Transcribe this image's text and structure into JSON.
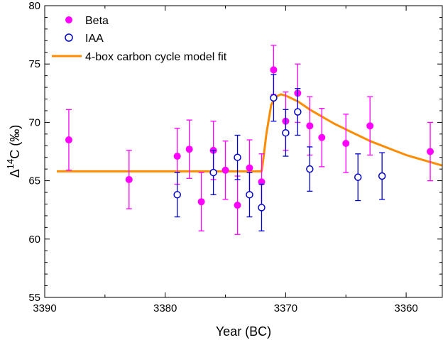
{
  "chart_data": {
    "type": "scatter",
    "xlabel": "Year (BC)",
    "ylabel_prefix": "Δ",
    "ylabel_sup": "14",
    "ylabel_main": "C (‰)",
    "xlim": [
      3390,
      3357
    ],
    "ylim": [
      55,
      80
    ],
    "x_ticks": [
      3390,
      3380,
      3370,
      3360
    ],
    "x_tick_labels": [
      "3390",
      "3380",
      "3370",
      "3360"
    ],
    "y_ticks": [
      55,
      60,
      65,
      70,
      75,
      80
    ],
    "y_tick_labels": [
      "55",
      "60",
      "65",
      "70",
      "75",
      "80"
    ],
    "legend_position": "top-left",
    "colors": {
      "beta": "#ff00ff",
      "iaa": "#0000cc",
      "model": "#ff8c00"
    },
    "series": [
      {
        "name": "Beta",
        "marker": "filled-circle",
        "points": [
          {
            "x": 3388,
            "y": 68.5,
            "err": 2.6
          },
          {
            "x": 3383,
            "y": 65.1,
            "err": 2.5
          },
          {
            "x": 3379,
            "y": 67.1,
            "err": 2.4
          },
          {
            "x": 3378,
            "y": 67.7,
            "err": 2.5
          },
          {
            "x": 3377,
            "y": 63.2,
            "err": 2.5
          },
          {
            "x": 3376,
            "y": 67.6,
            "err": 2.5
          },
          {
            "x": 3375,
            "y": 65.9,
            "err": 2.5
          },
          {
            "x": 3374,
            "y": 62.9,
            "err": 2.5
          },
          {
            "x": 3373,
            "y": 66.1,
            "err": 2.4
          },
          {
            "x": 3372,
            "y": 64.9,
            "err": 2.4
          },
          {
            "x": 3371,
            "y": 74.5,
            "err": 2.1
          },
          {
            "x": 3370,
            "y": 70.1,
            "err": 2.5
          },
          {
            "x": 3369,
            "y": 72.5,
            "err": 2.5
          },
          {
            "x": 3368,
            "y": 69.7,
            "err": 2.5
          },
          {
            "x": 3367,
            "y": 68.7,
            "err": 2.5
          },
          {
            "x": 3365,
            "y": 68.2,
            "err": 2.5
          },
          {
            "x": 3363,
            "y": 69.7,
            "err": 2.5
          },
          {
            "x": 3358,
            "y": 67.5,
            "err": 2.5
          }
        ]
      },
      {
        "name": "IAA",
        "marker": "open-circle",
        "points": [
          {
            "x": 3379,
            "y": 63.8,
            "err": 1.9
          },
          {
            "x": 3376,
            "y": 65.7,
            "err": 1.9
          },
          {
            "x": 3374,
            "y": 67.0,
            "err": 1.9
          },
          {
            "x": 3373,
            "y": 63.8,
            "err": 1.9
          },
          {
            "x": 3372,
            "y": 62.7,
            "err": 2.0
          },
          {
            "x": 3371,
            "y": 72.1,
            "err": 2.0
          },
          {
            "x": 3370,
            "y": 69.1,
            "err": 2.0
          },
          {
            "x": 3369,
            "y": 70.9,
            "err": 2.0
          },
          {
            "x": 3368,
            "y": 66.0,
            "err": 1.9
          },
          {
            "x": 3364,
            "y": 65.3,
            "err": 2.0
          },
          {
            "x": 3362,
            "y": 65.4,
            "err": 2.0
          }
        ]
      },
      {
        "name": "4-box carbon cycle model fit",
        "marker": "line",
        "points": [
          {
            "x": 3389,
            "y": 65.8
          },
          {
            "x": 3372,
            "y": 65.8
          },
          {
            "x": 3371.9,
            "y": 66.5
          },
          {
            "x": 3371.6,
            "y": 69.0
          },
          {
            "x": 3371.2,
            "y": 71.5
          },
          {
            "x": 3370.8,
            "y": 72.2
          },
          {
            "x": 3370.4,
            "y": 72.4
          },
          {
            "x": 3370,
            "y": 72.3
          },
          {
            "x": 3369,
            "y": 71.8
          },
          {
            "x": 3368,
            "y": 71.1
          },
          {
            "x": 3367,
            "y": 70.5
          },
          {
            "x": 3366,
            "y": 69.9
          },
          {
            "x": 3365,
            "y": 69.4
          },
          {
            "x": 3364,
            "y": 68.9
          },
          {
            "x": 3363,
            "y": 68.4
          },
          {
            "x": 3362,
            "y": 68.0
          },
          {
            "x": 3361,
            "y": 67.6
          },
          {
            "x": 3360,
            "y": 67.2
          },
          {
            "x": 3359,
            "y": 66.9
          },
          {
            "x": 3358,
            "y": 66.6
          },
          {
            "x": 3357,
            "y": 66.3
          }
        ]
      }
    ]
  }
}
